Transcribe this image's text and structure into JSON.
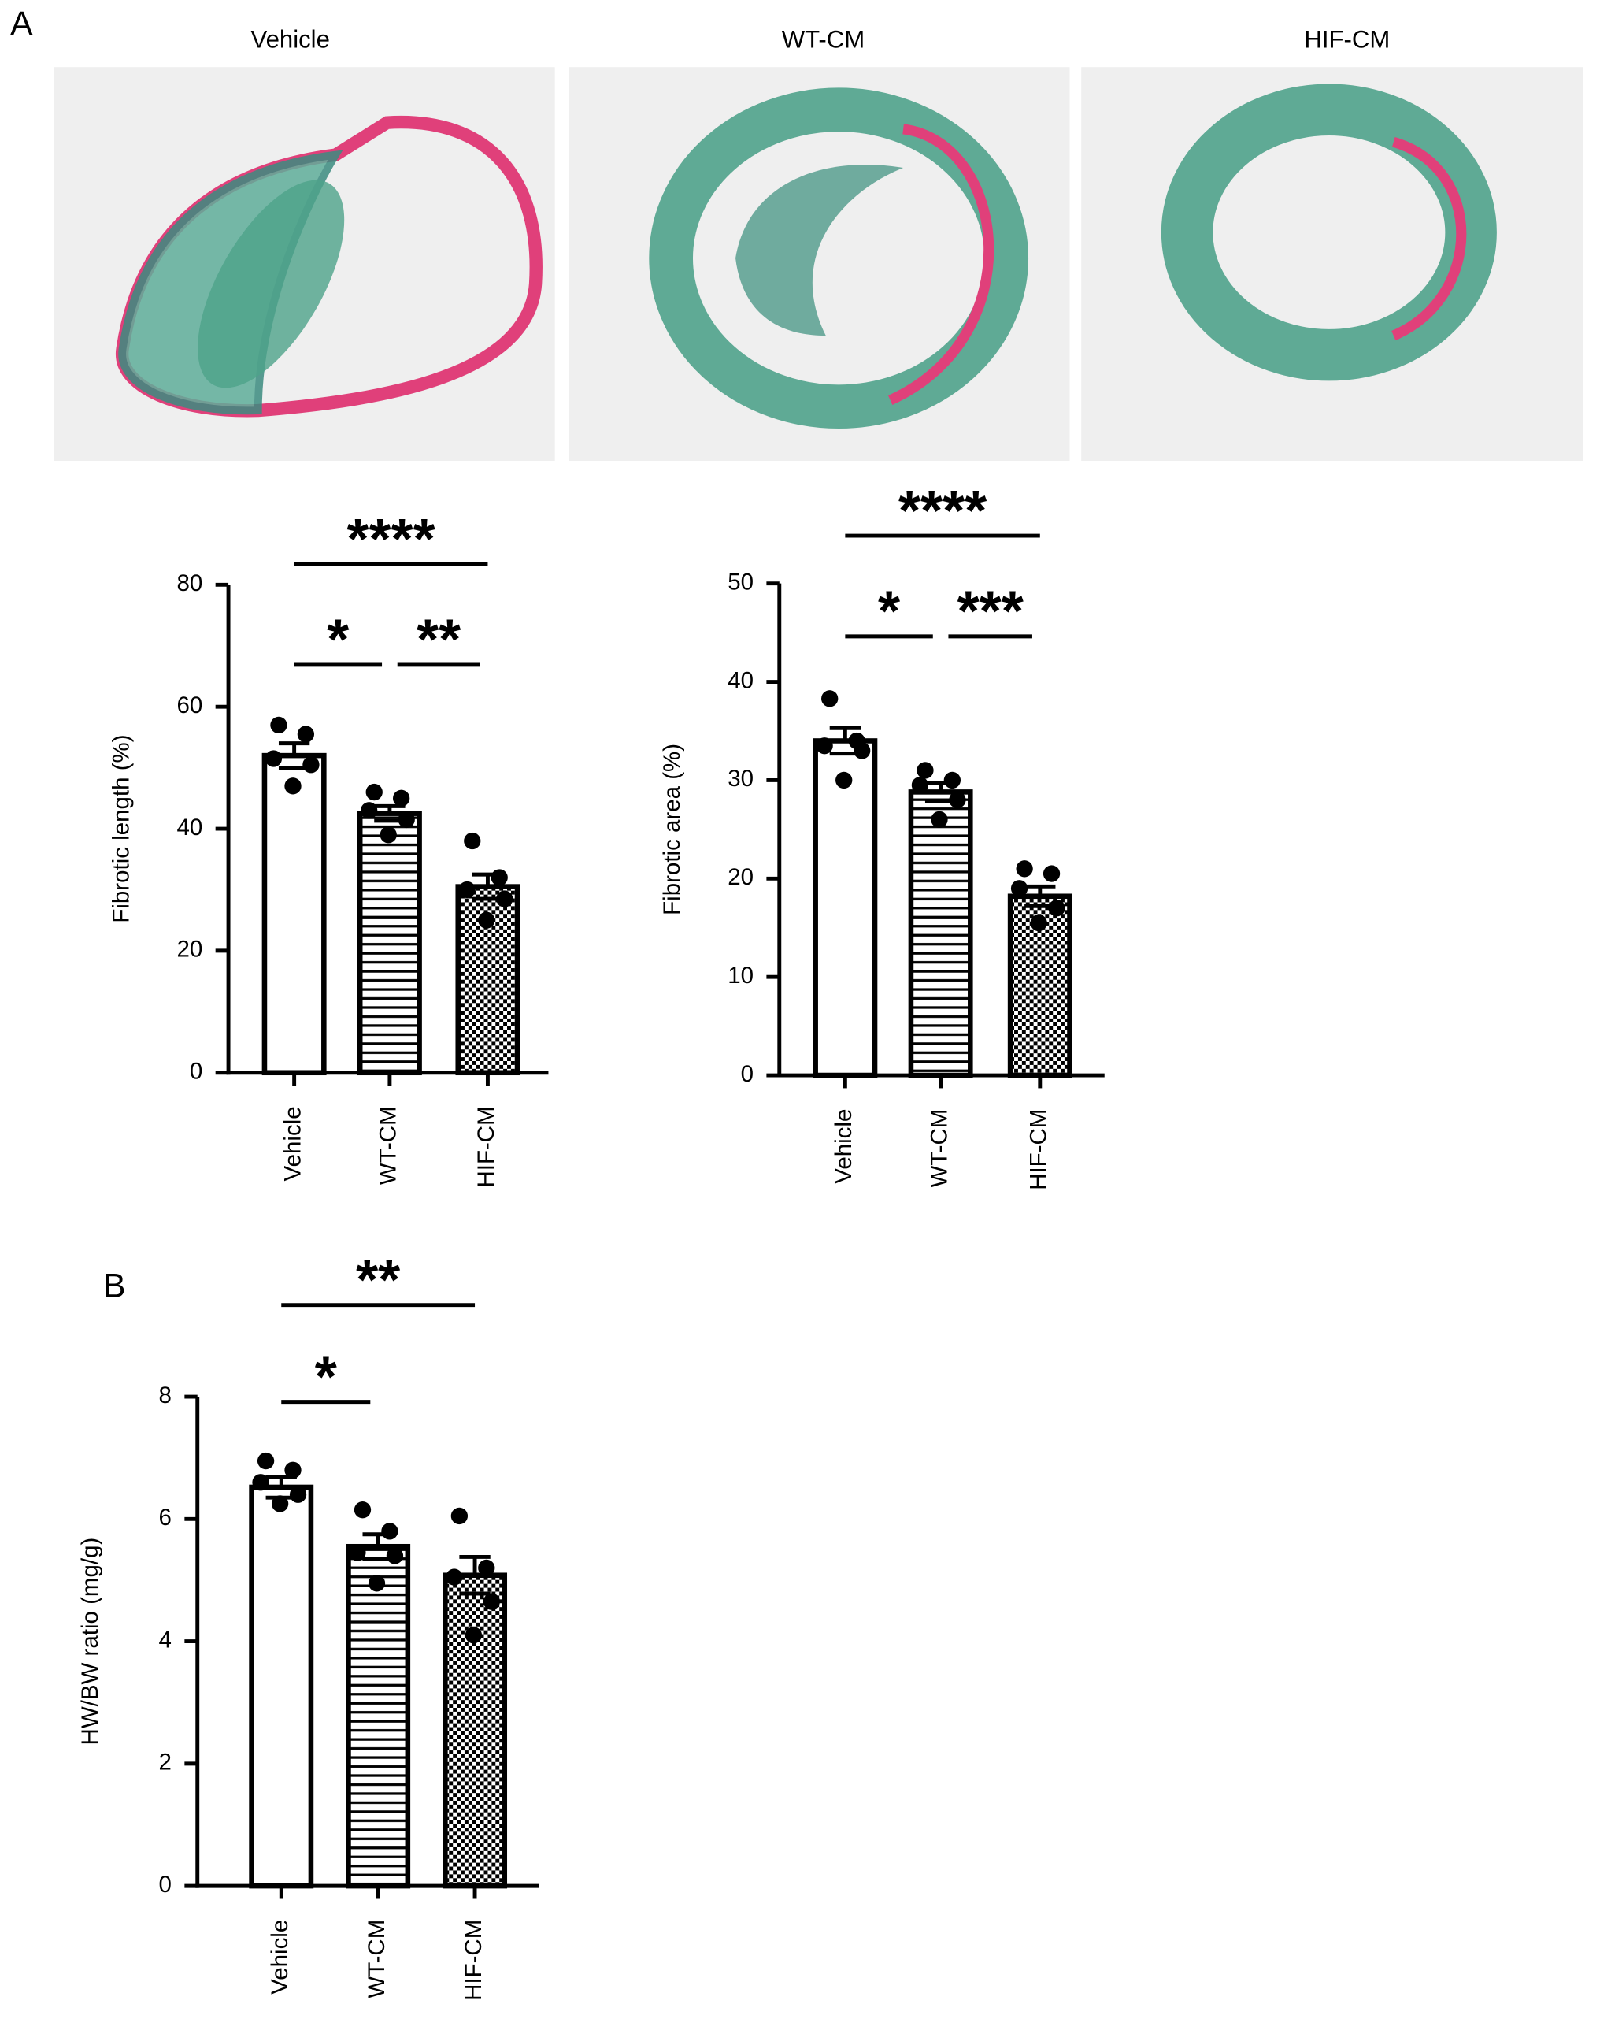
{
  "panels": [
    {
      "label": "A",
      "images": [
        "Vehicle",
        "WT-CM",
        "HIF-CM"
      ]
    },
    {
      "label": "B"
    }
  ],
  "chart_data": [
    {
      "type": "bar",
      "ylabel": "Fibrotic length (%)",
      "categories": [
        "Vehicle",
        "WT-CM",
        "HIF-CM"
      ],
      "values": [
        52,
        42.5,
        30.5
      ],
      "errors": [
        2,
        1.2,
        2
      ],
      "points": [
        [
          57,
          55.5,
          51.5,
          50.5,
          47
        ],
        [
          46,
          45,
          43,
          41.5,
          39
        ],
        [
          38,
          32,
          30,
          28.5,
          25
        ]
      ],
      "patterns": [
        "none",
        "horizontal-lines",
        "checkerboard"
      ],
      "color": "#000000",
      "ylim": [
        0,
        80
      ],
      "yticks": [
        0,
        20,
        40,
        60,
        80
      ],
      "annotations": [
        {
          "text": "****",
          "groups": [
            "Vehicle",
            "HIF-CM"
          ]
        },
        {
          "text": "*",
          "groups": [
            "Vehicle",
            "WT-CM"
          ]
        },
        {
          "text": "**",
          "groups": [
            "WT-CM",
            "HIF-CM"
          ]
        }
      ]
    },
    {
      "type": "bar",
      "ylabel": "Fibrotic area (%)",
      "categories": [
        "Vehicle",
        "WT-CM",
        "HIF-CM"
      ],
      "values": [
        34,
        28.8,
        18.2
      ],
      "errors": [
        1.3,
        0.9,
        1.0
      ],
      "points": [
        [
          38.3,
          34,
          33.5,
          33,
          30
        ],
        [
          31,
          30,
          29.5,
          28,
          26
        ],
        [
          21,
          20.5,
          19,
          17,
          15.5
        ]
      ],
      "patterns": [
        "none",
        "horizontal-lines",
        "checkerboard"
      ],
      "color": "#000000",
      "ylim": [
        0,
        50
      ],
      "yticks": [
        0,
        10,
        20,
        30,
        40,
        50
      ],
      "annotations": [
        {
          "text": "****",
          "groups": [
            "Vehicle",
            "HIF-CM"
          ]
        },
        {
          "text": "*",
          "groups": [
            "Vehicle",
            "WT-CM"
          ]
        },
        {
          "text": "***",
          "groups": [
            "WT-CM",
            "HIF-CM"
          ]
        }
      ]
    },
    {
      "type": "bar",
      "ylabel": "HW/BW ratio (mg/g)",
      "categories": [
        "Vehicle",
        "WT-CM",
        "HIF-CM"
      ],
      "values": [
        6.52,
        5.55,
        5.08
      ],
      "errors": [
        0.17,
        0.2,
        0.3
      ],
      "points": [
        [
          6.95,
          6.8,
          6.6,
          6.4,
          6.25
        ],
        [
          6.15,
          5.8,
          5.45,
          5.4,
          4.95
        ],
        [
          6.05,
          5.2,
          5.05,
          4.65,
          4.1
        ]
      ],
      "patterns": [
        "none",
        "horizontal-lines",
        "checkerboard"
      ],
      "color": "#000000",
      "ylim": [
        0,
        8
      ],
      "yticks": [
        0,
        2,
        4,
        6,
        8
      ],
      "annotations": [
        {
          "text": "**",
          "groups": [
            "Vehicle",
            "HIF-CM"
          ]
        },
        {
          "text": "*",
          "groups": [
            "Vehicle",
            "WT-CM"
          ]
        }
      ]
    }
  ]
}
